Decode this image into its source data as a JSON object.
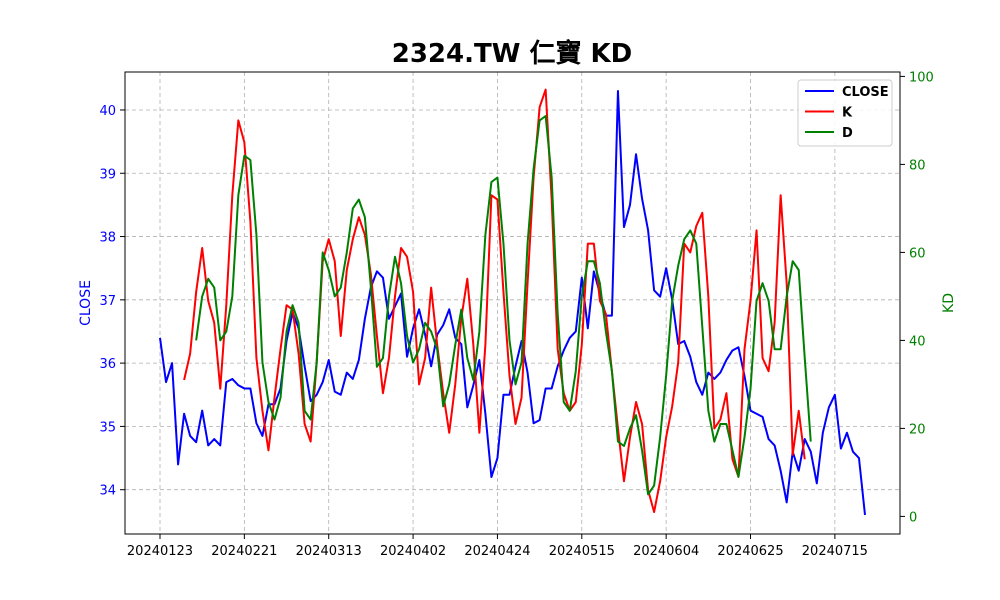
{
  "chart_data": {
    "type": "line",
    "title": "2324.TW 仁寶 KD",
    "xlabel": "",
    "ylabel_left": "CLOSE",
    "ylabel_right": "KD",
    "ylim_left": [
      33.3,
      40.6
    ],
    "ylim_right": [
      -4,
      101
    ],
    "yticks_left": [
      34,
      35,
      36,
      37,
      38,
      39,
      40
    ],
    "yticks_right": [
      0,
      20,
      40,
      60,
      80,
      100
    ],
    "x_tick_labels": [
      "20240123",
      "20240221",
      "20240313",
      "20240402",
      "20240424",
      "20240515",
      "20240604",
      "20240625",
      "20240715"
    ],
    "x_tick_indices": [
      0,
      14,
      28,
      42,
      56,
      70,
      84,
      98,
      112
    ],
    "n_points": 118,
    "grid": true,
    "legend_position": "top-right",
    "colors": {
      "CLOSE": "#0000ff",
      "K": "#ff0000",
      "D": "#008000",
      "grid": "#b0b0b0"
    },
    "legend": [
      "CLOSE",
      "K",
      "D"
    ],
    "series": [
      {
        "name": "CLOSE",
        "axis": "left",
        "start_index": 0,
        "values": [
          36.4,
          35.7,
          36.0,
          34.4,
          35.2,
          34.85,
          34.75,
          35.25,
          34.7,
          34.8,
          34.7,
          35.7,
          35.75,
          35.65,
          35.6,
          35.6,
          35.05,
          34.85,
          35.35,
          35.35,
          35.6,
          36.35,
          36.8,
          36.55,
          35.95,
          35.4,
          35.5,
          35.7,
          36.05,
          35.55,
          35.5,
          35.85,
          35.75,
          36.05,
          36.7,
          37.2,
          37.45,
          37.35,
          36.7,
          36.9,
          37.1,
          36.1,
          36.55,
          36.85,
          36.45,
          35.95,
          36.45,
          36.6,
          36.85,
          36.4,
          36.3,
          35.3,
          35.65,
          36.05,
          35.2,
          34.2,
          34.5,
          35.5,
          35.5,
          35.95,
          36.35,
          35.85,
          35.05,
          35.1,
          35.6,
          35.6,
          35.95,
          36.2,
          36.4,
          36.5,
          37.35,
          36.55,
          37.45,
          37.1,
          36.75,
          36.75,
          40.3,
          38.15,
          38.5,
          39.3,
          38.6,
          38.1,
          37.15,
          37.05,
          37.5,
          37.0,
          36.3,
          36.35,
          36.1,
          35.7,
          35.5,
          35.85,
          35.75,
          35.85,
          36.05,
          36.2,
          36.25,
          35.8,
          35.25,
          35.2,
          35.15,
          34.8,
          34.7,
          34.3,
          33.8,
          34.6,
          34.3,
          34.8,
          34.6,
          34.1,
          34.9,
          35.3,
          35.5,
          34.65,
          34.9,
          34.6,
          34.5,
          33.6
        ]
      },
      {
        "name": "K",
        "axis": "right",
        "start_index": 4,
        "values": [
          31,
          37,
          51,
          61,
          49,
          44,
          29,
          48,
          73,
          90,
          85,
          67,
          36,
          24,
          15,
          27,
          38,
          48,
          47,
          37,
          21,
          17,
          35,
          58,
          63,
          58,
          41,
          56,
          63,
          68,
          64,
          55,
          41,
          28,
          36,
          50,
          61,
          59,
          51,
          30,
          36,
          52,
          39,
          28,
          19,
          30,
          45,
          54,
          39,
          19,
          39,
          73,
          72,
          51,
          32,
          21,
          27,
          53,
          77,
          93,
          97,
          72,
          38,
          28,
          24,
          26,
          39,
          62,
          62,
          49,
          46,
          33,
          20,
          8,
          18,
          26,
          21,
          6,
          1,
          8,
          18,
          25,
          35,
          62,
          60,
          66,
          69,
          50,
          20,
          22,
          28,
          13,
          9,
          38,
          49,
          65,
          36,
          33,
          44,
          73,
          53,
          14,
          24,
          13
        ]
      },
      {
        "name": "D",
        "axis": "right",
        "start_index": 6,
        "values": [
          40,
          50,
          54,
          52,
          40,
          42,
          50,
          73,
          82,
          81,
          64,
          35,
          26,
          22,
          27,
          42,
          48,
          44,
          24,
          22,
          35,
          60,
          56,
          50,
          52,
          60,
          70,
          72,
          68,
          52,
          34,
          36,
          50,
          59,
          53,
          41,
          35,
          38,
          44,
          42,
          38,
          25,
          30,
          39,
          47,
          36,
          31,
          42,
          64,
          76,
          77,
          62,
          40,
          30,
          35,
          62,
          79,
          90,
          91,
          77,
          46,
          26,
          24,
          33,
          50,
          58,
          58,
          53,
          42,
          33,
          17,
          16,
          20,
          23,
          15,
          5,
          7,
          18,
          32,
          49,
          57,
          63,
          65,
          62,
          43,
          24,
          17,
          21,
          21,
          15,
          9,
          18,
          29,
          49,
          53,
          49,
          38,
          38,
          50,
          58,
          56,
          36,
          17
        ]
      }
    ]
  }
}
